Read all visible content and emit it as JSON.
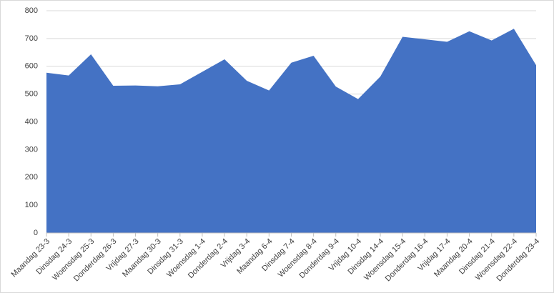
{
  "chart_data": {
    "type": "area",
    "categories": [
      "Maandag 23-3",
      "Dinsdag 24-3",
      "Woensdag 25-3",
      "Donderdag 26-3",
      "Vrijdag 27-3",
      "Maandag 30-3",
      "Dinsdag 31-3",
      "Woensdag 1-4",
      "Donderdag 2-4",
      "Vrijdag 3-4",
      "Maandag 6-4",
      "Dinsdag 7-4",
      "Woensdag 8-4",
      "Donderdag 9-4",
      "Vrijdag 10-4",
      "Dinsdag 14-4",
      "Woensdag 15-4",
      "Donderdag 16-4",
      "Vrijdag 17-4",
      "Maandag 20-4",
      "Dinsdag 21-4",
      "Woensdag 22-4",
      "Donderdag 23-4"
    ],
    "values": [
      577,
      567,
      643,
      530,
      531,
      528,
      535,
      580,
      625,
      548,
      513,
      613,
      638,
      527,
      482,
      563,
      706,
      697,
      688,
      726,
      693,
      735,
      604
    ],
    "color": "#4472c4",
    "ylim": [
      0,
      800
    ],
    "yticks": [
      0,
      100,
      200,
      300,
      400,
      500,
      600,
      700,
      800
    ],
    "grid": true
  }
}
